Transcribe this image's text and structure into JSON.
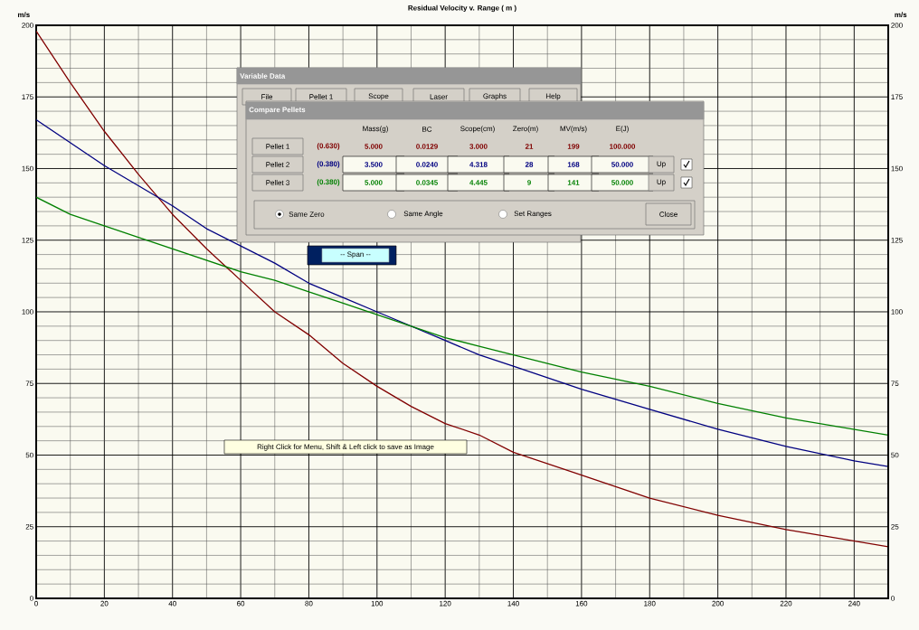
{
  "chart_data": {
    "type": "line",
    "title": "Residual Velocity  v. Range ( m )",
    "ylabel": "m/s",
    "y2label": "m/s",
    "xlim": [
      0,
      250
    ],
    "xticks": [
      0,
      20,
      40,
      60,
      80,
      100,
      120,
      140,
      160,
      180,
      200,
      220,
      240
    ],
    "ylim": [
      0,
      200
    ],
    "yticks": [
      0,
      25,
      50,
      75,
      100,
      125,
      150,
      175,
      200
    ],
    "y2lim": [
      0,
      200
    ],
    "y2ticks": [
      0,
      25,
      50,
      75,
      100,
      125,
      150,
      175,
      200
    ],
    "grid": true,
    "x": [
      0,
      10,
      20,
      30,
      40,
      50,
      60,
      70,
      80,
      90,
      100,
      110,
      120,
      130,
      140,
      160,
      180,
      200,
      220,
      240,
      250
    ],
    "series": [
      {
        "color": "#800000",
        "values": [
          198,
          180,
          163,
          148,
          134,
          122,
          111,
          100,
          92,
          82,
          74,
          67,
          61,
          57,
          51,
          43,
          35,
          29,
          24,
          20,
          18
        ]
      },
      {
        "color": "#000080",
        "values": [
          167,
          159,
          151,
          144,
          137,
          129,
          123,
          117,
          110,
          105,
          100,
          95,
          90,
          85,
          81,
          73,
          66,
          59,
          53,
          48,
          46
        ]
      },
      {
        "color": "#008000",
        "values": [
          140,
          134,
          130,
          126,
          122,
          118,
          114,
          111,
          107,
          103,
          99,
          95,
          91,
          88,
          85,
          79,
          74,
          68,
          63,
          59,
          57
        ]
      }
    ],
    "annotations": [
      "Variable Data",
      "File",
      "Pellet 1",
      "Scope",
      "Laser",
      "Graphs",
      "Help",
      "Compare Pellets",
      "Mass(g)",
      "BC",
      "Scope(cm)",
      "Zero(m)",
      "MV(m/s)",
      "E(J)",
      "Pellet 1",
      "(0.630)",
      "5.000",
      "0.0129",
      "3.000",
      "21",
      "199",
      "100.000",
      "Pellet 2",
      "(0.380)",
      "3.500",
      "0.0240",
      "4.318",
      "28",
      "168",
      "50.000",
      "Up",
      "Pellet 3",
      "(0.380)",
      "5.000",
      "0.0345",
      "4.445",
      "9",
      "141",
      "50.000",
      "Up",
      "Same Zero",
      "Same Angle",
      "Set Ranges",
      "Close",
      "-- Span --",
      "Right Click for Menu, Shift & Left click to save as Image"
    ]
  }
}
